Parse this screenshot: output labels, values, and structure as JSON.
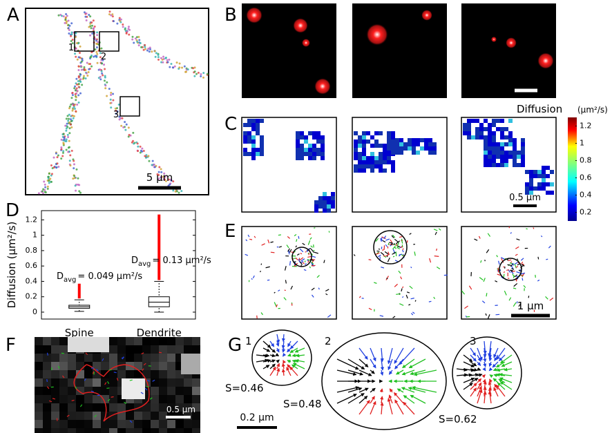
{
  "panel_labels": [
    "A",
    "B",
    "C",
    "D",
    "E",
    "F",
    "G"
  ],
  "panel_a": {
    "scale_bar": "5 µm",
    "regions": [
      "1",
      "2",
      "3"
    ]
  },
  "panel_c": {
    "scale_bar": "0.5 µm",
    "colorbar": {
      "title": "Diffusion",
      "unit": "(µm²/s)",
      "lim": [
        0.1,
        1.3
      ],
      "ticks": [
        0.2,
        0.4,
        0.6,
        0.8,
        1,
        1.2
      ]
    }
  },
  "chart_data": {
    "type": "box",
    "ylabel": "Diffusion (µm²/s)",
    "categories": [
      "Spine",
      "Dendrite"
    ],
    "ylim": [
      -0.09,
      1.32
    ],
    "yticks": [
      0,
      0.2,
      0.4,
      0.6,
      0.8,
      1,
      1.2
    ],
    "boxes": [
      {
        "whisker_low": 0.01,
        "q1": 0.05,
        "median": 0.07,
        "q3": 0.09,
        "whisker_high": 0.16,
        "outlier_max": 0.37
      },
      {
        "whisker_low": 0.0,
        "q1": 0.07,
        "median": 0.13,
        "q3": 0.2,
        "whisker_high": 0.4,
        "outlier_max": 1.27
      }
    ],
    "outlier_color": "#ff0000",
    "annotations": [
      {
        "symbol": "D",
        "subscript": "avg",
        "text": "= 0.049 µm²/s"
      },
      {
        "symbol": "D",
        "subscript": "avg",
        "text": "= 0.13 µm²/s"
      }
    ]
  },
  "panel_e": {
    "scale_bar": "1 µm"
  },
  "panel_f": {
    "scale_bar": "0.5 µm"
  },
  "panel_g": {
    "regions": [
      "1",
      "2",
      "3"
    ],
    "scores": [
      "S=0.46",
      "S=0.48",
      "S=0.62"
    ],
    "scale_bar": "0.2 µm"
  }
}
